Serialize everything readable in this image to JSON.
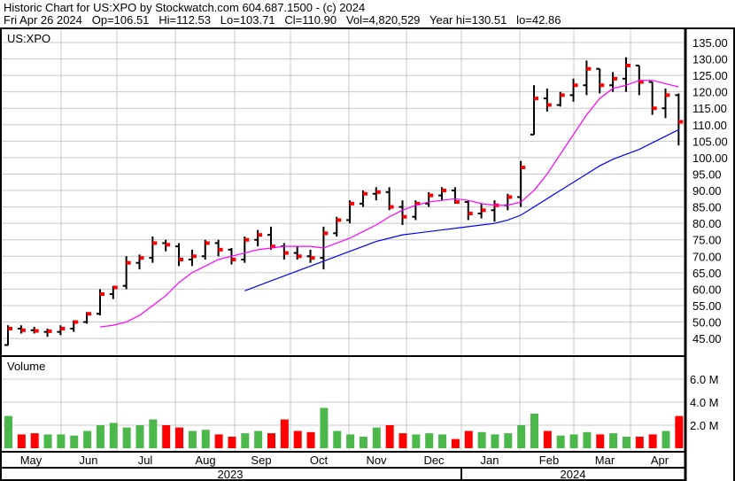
{
  "header": {
    "title": "Historic Chart for US:XPO by Stockwatch.com 604.687.1500 - (c) 2024",
    "quote": "Fri Apr 26 2024   Op=106.51   Hi=112.53   Lo=103.71   Cl=110.90   Vol=4,820,529   Year hi=130.51   lo=42.86"
  },
  "colors": {
    "bar": "#000000",
    "close_tick": "#ff0000",
    "ma_short": "#ff00ff",
    "ma_long": "#0000ff",
    "vol_up": "#4cb84c",
    "vol_down": "#ff0000",
    "grid": "#c8c8c8"
  },
  "chart_data": {
    "type": "ohlc",
    "symbol_label": "US:XPO",
    "volume_label": "Volume",
    "price_axis": {
      "ticks": [
        "45.00",
        "50.00",
        "55.00",
        "60.00",
        "65.00",
        "70.00",
        "75.00",
        "80.00",
        "85.00",
        "90.00",
        "95.00",
        "100.00",
        "105.00",
        "110.00",
        "115.00",
        "120.00",
        "125.00",
        "130.00",
        "135.00"
      ],
      "range": [
        40,
        138
      ]
    },
    "volume_axis": {
      "ticks": [
        "2.0 M",
        "4.0 M",
        "6.0 M"
      ],
      "range": [
        0,
        7.6
      ]
    },
    "months": [
      "May",
      "Jun",
      "Jul",
      "Aug",
      "Sep",
      "Oct",
      "Nov",
      "Dec",
      "Jan",
      "Feb",
      "Mar",
      "Apr"
    ],
    "years": [
      "2023",
      "2024"
    ],
    "grid": true,
    "bars": [
      {
        "week": "2023-05-01",
        "o": 43,
        "h": 49,
        "l": 42.9,
        "c": 48,
        "v": 2.8,
        "ma50": null,
        "ma200": null
      },
      {
        "week": "2023-05-08",
        "o": 48,
        "h": 49,
        "l": 46.5,
        "c": 47.5,
        "v": 1.2,
        "ma50": null,
        "ma200": null
      },
      {
        "week": "2023-05-15",
        "o": 47.5,
        "h": 48.5,
        "l": 46.5,
        "c": 47.3,
        "v": 1.3,
        "ma50": null,
        "ma200": null
      },
      {
        "week": "2023-05-22",
        "o": 47,
        "h": 48,
        "l": 45.5,
        "c": 47.2,
        "v": 1.2,
        "ma50": null,
        "ma200": null
      },
      {
        "week": "2023-05-29",
        "o": 47,
        "h": 49,
        "l": 46,
        "c": 48,
        "v": 1.2,
        "ma50": null,
        "ma200": null
      },
      {
        "week": "2023-06-05",
        "o": 48,
        "h": 50.5,
        "l": 47,
        "c": 50,
        "v": 1.1,
        "ma50": null,
        "ma200": null
      },
      {
        "week": "2023-06-12",
        "o": 50,
        "h": 53,
        "l": 49.5,
        "c": 52.5,
        "v": 1.5,
        "ma50": null,
        "ma200": null
      },
      {
        "week": "2023-06-19",
        "o": 52.5,
        "h": 60,
        "l": 52,
        "c": 58.5,
        "v": 2.0,
        "ma50": 48.5,
        "ma200": null
      },
      {
        "week": "2023-06-26",
        "o": 58.5,
        "h": 61,
        "l": 57,
        "c": 60.5,
        "v": 2.2,
        "ma50": 49,
        "ma200": null
      },
      {
        "week": "2023-07-03",
        "o": 61,
        "h": 70,
        "l": 60,
        "c": 68,
        "v": 1.8,
        "ma50": 50,
        "ma200": null
      },
      {
        "week": "2023-07-10",
        "o": 68,
        "h": 70.5,
        "l": 66,
        "c": 69.5,
        "v": 2.0,
        "ma50": 52,
        "ma200": null
      },
      {
        "week": "2023-07-17",
        "o": 69.5,
        "h": 76,
        "l": 68,
        "c": 74,
        "v": 2.5,
        "ma50": 55,
        "ma200": null
      },
      {
        "week": "2023-07-24",
        "o": 74,
        "h": 75,
        "l": 71.5,
        "c": 73.5,
        "v": 2.0,
        "ma50": 58,
        "ma200": null
      },
      {
        "week": "2023-07-31",
        "o": 73,
        "h": 74,
        "l": 67,
        "c": 69,
        "v": 1.8,
        "ma50": 62,
        "ma200": null
      },
      {
        "week": "2023-08-07",
        "o": 69,
        "h": 72,
        "l": 67,
        "c": 70,
        "v": 1.5,
        "ma50": 65,
        "ma200": null
      },
      {
        "week": "2023-08-14",
        "o": 70,
        "h": 75,
        "l": 69,
        "c": 74,
        "v": 1.6,
        "ma50": 67,
        "ma200": null
      },
      {
        "week": "2023-08-21",
        "o": 74,
        "h": 75,
        "l": 70,
        "c": 72,
        "v": 1.2,
        "ma50": 69,
        "ma200": null
      },
      {
        "week": "2023-08-28",
        "o": 72,
        "h": 72.5,
        "l": 67.5,
        "c": 69,
        "v": 1.0,
        "ma50": 70,
        "ma200": null
      },
      {
        "week": "2023-09-05",
        "o": 69,
        "h": 76,
        "l": 68,
        "c": 75,
        "v": 1.3,
        "ma50": 71,
        "ma200": 59.5
      },
      {
        "week": "2023-09-11",
        "o": 75,
        "h": 78,
        "l": 73,
        "c": 76.5,
        "v": 1.5,
        "ma50": 72,
        "ma200": 61
      },
      {
        "week": "2023-09-18",
        "o": 76.5,
        "h": 79,
        "l": 72,
        "c": 73,
        "v": 1.3,
        "ma50": 72.5,
        "ma200": 62.5
      },
      {
        "week": "2023-09-25",
        "o": 73,
        "h": 74,
        "l": 69,
        "c": 71,
        "v": 2.5,
        "ma50": 73,
        "ma200": 64
      },
      {
        "week": "2023-10-02",
        "o": 71,
        "h": 73,
        "l": 69,
        "c": 70,
        "v": 1.5,
        "ma50": 73,
        "ma200": 65.5
      },
      {
        "week": "2023-10-09",
        "o": 70,
        "h": 72,
        "l": 68,
        "c": 69.5,
        "v": 1.4,
        "ma50": 73,
        "ma200": 67
      },
      {
        "week": "2023-10-16",
        "o": 69.5,
        "h": 79,
        "l": 66,
        "c": 77,
        "v": 3.5,
        "ma50": 72.5,
        "ma200": 68.5
      },
      {
        "week": "2023-10-23",
        "o": 77,
        "h": 82,
        "l": 76,
        "c": 81,
        "v": 1.5,
        "ma50": 74,
        "ma200": 70
      },
      {
        "week": "2023-10-30",
        "o": 81,
        "h": 87,
        "l": 80,
        "c": 86,
        "v": 1.2,
        "ma50": 75.5,
        "ma200": 71.5
      },
      {
        "week": "2023-11-06",
        "o": 86,
        "h": 90,
        "l": 85,
        "c": 89,
        "v": 1.0,
        "ma50": 77.5,
        "ma200": 73
      },
      {
        "week": "2023-11-13",
        "o": 89,
        "h": 91,
        "l": 87,
        "c": 89.5,
        "v": 1.8,
        "ma50": 79.5,
        "ma200": 74.5
      },
      {
        "week": "2023-11-20",
        "o": 89.5,
        "h": 91,
        "l": 84,
        "c": 85,
        "v": 2.0,
        "ma50": 82,
        "ma200": 75.5
      },
      {
        "week": "2023-11-27",
        "o": 85,
        "h": 87,
        "l": 79.5,
        "c": 82,
        "v": 1.3,
        "ma50": 84,
        "ma200": 76.5
      },
      {
        "week": "2023-12-04",
        "o": 82,
        "h": 87,
        "l": 81,
        "c": 86,
        "v": 1.2,
        "ma50": 85.5,
        "ma200": 77
      },
      {
        "week": "2023-12-11",
        "o": 86,
        "h": 89.5,
        "l": 85,
        "c": 88.5,
        "v": 1.3,
        "ma50": 86.5,
        "ma200": 77.5
      },
      {
        "week": "2023-12-18",
        "o": 88.5,
        "h": 91,
        "l": 87,
        "c": 90,
        "v": 1.2,
        "ma50": 87,
        "ma200": 78
      },
      {
        "week": "2023-12-26",
        "o": 90,
        "h": 91,
        "l": 86,
        "c": 86.5,
        "v": 0.8,
        "ma50": 87.5,
        "ma200": 78.5
      },
      {
        "week": "2024-01-02",
        "o": 86.5,
        "h": 87,
        "l": 81,
        "c": 83,
        "v": 1.5,
        "ma50": 87,
        "ma200": 79
      },
      {
        "week": "2024-01-08",
        "o": 83,
        "h": 86,
        "l": 81.5,
        "c": 84,
        "v": 1.4,
        "ma50": 86,
        "ma200": 79.5
      },
      {
        "week": "2024-01-16",
        "o": 84,
        "h": 87,
        "l": 80.5,
        "c": 85.5,
        "v": 1.2,
        "ma50": 85.5,
        "ma200": 80
      },
      {
        "week": "2024-01-22",
        "o": 85.5,
        "h": 89,
        "l": 84,
        "c": 88,
        "v": 1.3,
        "ma50": 85.5,
        "ma200": 81
      },
      {
        "week": "2024-01-29",
        "o": 88,
        "h": 99,
        "l": 85,
        "c": 97,
        "v": 2.0,
        "ma50": 86.5,
        "ma200": 82.5
      },
      {
        "week": "2024-02-05",
        "o": 107,
        "h": 122,
        "l": 107,
        "c": 118,
        "v": 3.0,
        "ma50": 90,
        "ma200": 85
      },
      {
        "week": "2024-02-12",
        "o": 118,
        "h": 121,
        "l": 114,
        "c": 116,
        "v": 1.5,
        "ma50": 95,
        "ma200": 87.5
      },
      {
        "week": "2024-02-20",
        "o": 116,
        "h": 120,
        "l": 115.5,
        "c": 119,
        "v": 1.1,
        "ma50": 101,
        "ma200": 90
      },
      {
        "week": "2024-02-26",
        "o": 119,
        "h": 124,
        "l": 117,
        "c": 122,
        "v": 1.2,
        "ma50": 107,
        "ma200": 92.5
      },
      {
        "week": "2024-03-04",
        "o": 122,
        "h": 129.5,
        "l": 119,
        "c": 127,
        "v": 1.4,
        "ma50": 113,
        "ma200": 95
      },
      {
        "week": "2024-03-11",
        "o": 127,
        "h": 127,
        "l": 119.5,
        "c": 122,
        "v": 1.2,
        "ma50": 118,
        "ma200": 97.5
      },
      {
        "week": "2024-03-18",
        "o": 122,
        "h": 126,
        "l": 120,
        "c": 124,
        "v": 1.3,
        "ma50": 121,
        "ma200": 99.5
      },
      {
        "week": "2024-03-25",
        "o": 124,
        "h": 130.5,
        "l": 120,
        "c": 128,
        "v": 1.0,
        "ma50": 122,
        "ma200": 101
      },
      {
        "week": "2024-04-01",
        "o": 128,
        "h": 128,
        "l": 119,
        "c": 123,
        "v": 1.0,
        "ma50": 123.5,
        "ma200": 102.5
      },
      {
        "week": "2024-04-08",
        "o": 123,
        "h": 123,
        "l": 113,
        "c": 115,
        "v": 1.2,
        "ma50": 123.5,
        "ma200": 104.5
      },
      {
        "week": "2024-04-15",
        "o": 115,
        "h": 121,
        "l": 112,
        "c": 119,
        "v": 1.5,
        "ma50": 122.5,
        "ma200": 106.5
      },
      {
        "week": "2024-04-22",
        "o": 119,
        "h": 119.5,
        "l": 103.7,
        "c": 110.9,
        "v": 2.8,
        "ma50": 121.5,
        "ma200": 108.5
      }
    ]
  }
}
